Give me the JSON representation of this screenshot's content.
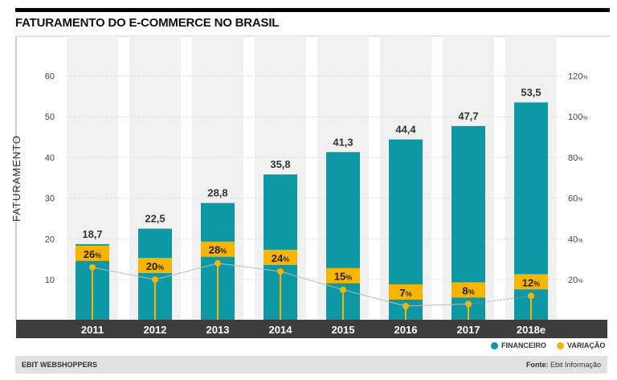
{
  "chart_data": {
    "type": "bar",
    "title": "FATURAMENTO DO E-COMMERCE NO BRASIL",
    "ylabel": "FATURAMENTO",
    "categories": [
      "2011",
      "2012",
      "2013",
      "2014",
      "2015",
      "2016",
      "2017",
      "2018e"
    ],
    "series": [
      {
        "name": "FINANCEIRO",
        "type": "bar",
        "axis": "left",
        "values": [
          18.7,
          22.5,
          28.8,
          35.8,
          41.3,
          44.4,
          47.7,
          53.5
        ],
        "labels": [
          "18,7",
          "22,5",
          "28,8",
          "35,8",
          "41,3",
          "44,4",
          "47,7",
          "53,5"
        ],
        "color": "#0e97a4"
      },
      {
        "name": "VARIAÇÃO",
        "type": "line",
        "axis": "right",
        "values": [
          26,
          20,
          28,
          24,
          15,
          7,
          8,
          12
        ],
        "labels": [
          "26",
          "20",
          "28",
          "24",
          "15",
          "7",
          "8",
          "12"
        ],
        "unit": "%",
        "color": "#f7b500",
        "estimated_last_segment_dotted": true
      }
    ],
    "ylim": [
      0,
      60
    ],
    "yticks": [
      "10",
      "20",
      "30",
      "40",
      "50",
      "60"
    ],
    "y2lim": [
      0,
      120
    ],
    "y2ticks": [
      "20%",
      "40%",
      "60%",
      "80%",
      "100%",
      "120%"
    ],
    "grid": true,
    "legend": "bottom-right"
  },
  "footer": {
    "source_left": "EBIT WEBSHOPPERS",
    "source_label": "Fonte:",
    "source_value": " Ebit Informação"
  },
  "colors": {
    "bar": "#0e97a4",
    "variation": "#f7b500",
    "band": "#3d3d3d",
    "column_bg": "#f1f1f1"
  }
}
